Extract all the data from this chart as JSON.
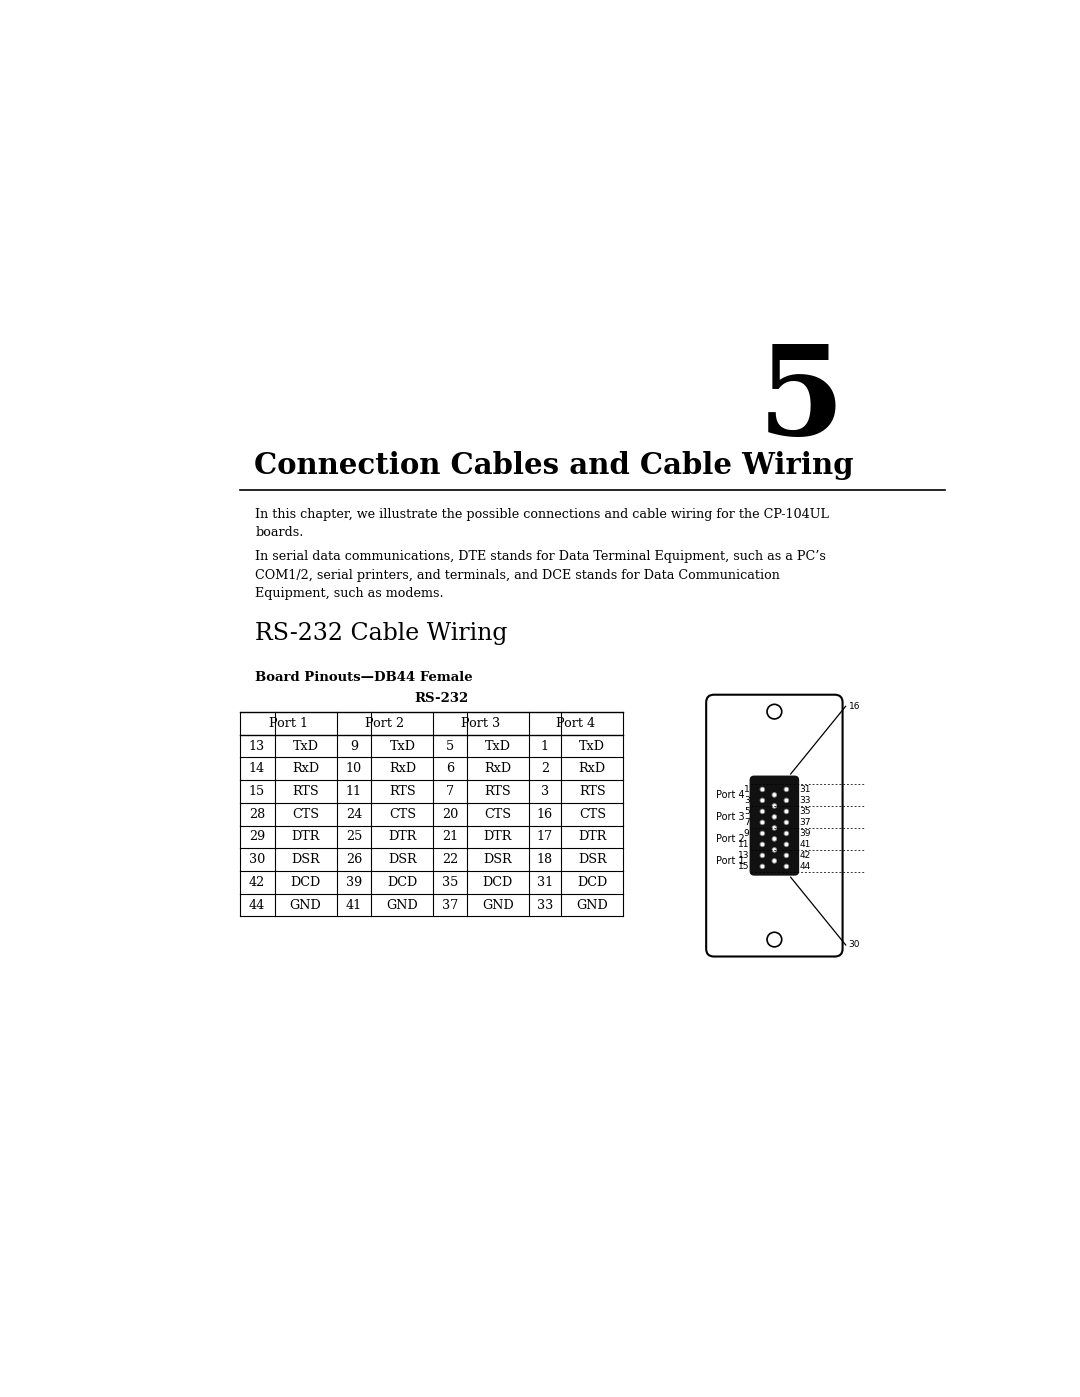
{
  "chapter_number": "5",
  "chapter_title": "Connection Cables and Cable Wiring",
  "para1": "In this chapter, we illustrate the possible connections and cable wiring for the CP-104UL\nboards.",
  "para2": "In serial data communications, DTE stands for Data Terminal Equipment, such as a PC’s\nCOM1/2, serial printers, and terminals, and DCE stands for Data Communication\nEquipment, such as modems.",
  "section_title": "RS-232 Cable Wiring",
  "table_subtitle": "Board Pinouts—DB44 Female",
  "table_rs232_label": "RS-232",
  "table_headers": [
    "Port 1",
    "Port 2",
    "Port 3",
    "Port 4"
  ],
  "table_rows": [
    [
      "13",
      "TxD",
      "9",
      "TxD",
      "5",
      "TxD",
      "1",
      "TxD"
    ],
    [
      "14",
      "RxD",
      "10",
      "RxD",
      "6",
      "RxD",
      "2",
      "RxD"
    ],
    [
      "15",
      "RTS",
      "11",
      "RTS",
      "7",
      "RTS",
      "3",
      "RTS"
    ],
    [
      "28",
      "CTS",
      "24",
      "CTS",
      "20",
      "CTS",
      "16",
      "CTS"
    ],
    [
      "29",
      "DTR",
      "25",
      "DTR",
      "21",
      "DTR",
      "17",
      "DTR"
    ],
    [
      "30",
      "DSR",
      "26",
      "DSR",
      "22",
      "DSR",
      "18",
      "DSR"
    ],
    [
      "42",
      "DCD",
      "39",
      "DCD",
      "35",
      "DCD",
      "31",
      "DCD"
    ],
    [
      "44",
      "GND",
      "41",
      "GND",
      "37",
      "GND",
      "33",
      "GND"
    ]
  ],
  "connector_port_labels": [
    "Port 4",
    "Port 3",
    "Port 2",
    "Port 1"
  ],
  "connector_left_pins": [
    "1",
    "3",
    "5",
    "7",
    "9",
    "11",
    "13",
    "15"
  ],
  "connector_right_pins": [
    "31",
    "33",
    "35",
    "37",
    "39",
    "41",
    "42",
    "44"
  ],
  "connector_top_pin": "16",
  "connector_bottom_pin": "30",
  "bg_color": "#ffffff",
  "text_color": "#000000",
  "line_color": "#000000",
  "table_line_color": "#000000"
}
